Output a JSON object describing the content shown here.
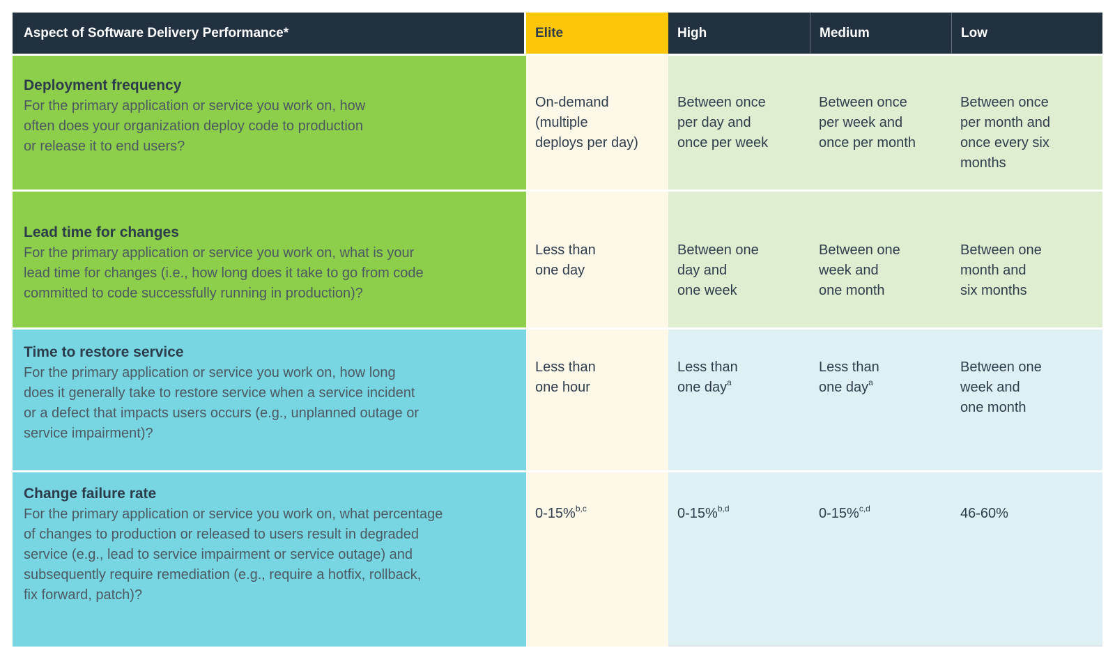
{
  "colors": {
    "header-bg": "#213140",
    "header-text": "#ffffff",
    "elite-bg": "#fdc608",
    "green": "#8dce4b",
    "green-tint": "#dfeed1",
    "cream": "#fdf8e7",
    "cyan": "#78d6e3",
    "cyan-tint": "#def0f4",
    "title-text": "#2d3c4b",
    "desc-text": "#4d5961",
    "cell-text": "#2e3d4c"
  },
  "header": {
    "aspect": "Aspect of Software Delivery Performance*",
    "levels": [
      "Elite",
      "High",
      "Medium",
      "Low"
    ]
  },
  "rows": [
    {
      "title": "Deployment frequency",
      "description": "For the primary application or service you work on, how\noften does your organization deploy code to production\nor release it to end users?",
      "cells": [
        {
          "text": "On-demand\n(multiple\ndeploys per day)",
          "sup": ""
        },
        {
          "text": "Between once\nper day and\nonce per week",
          "sup": ""
        },
        {
          "text": "Between once\nper week and\nonce per month",
          "sup": ""
        },
        {
          "text": "Between once\nper month and\nonce every six\nmonths",
          "sup": ""
        }
      ]
    },
    {
      "title": "Lead time for changes",
      "description": "For the primary application or service you work on, what is your\nlead time for changes (i.e., how long does it take to go from code\ncommitted to code successfully running in production)?",
      "cells": [
        {
          "text": "Less than\none day",
          "sup": ""
        },
        {
          "text": "Between one\nday and\none week",
          "sup": ""
        },
        {
          "text": "Between one\nweek and\none month",
          "sup": ""
        },
        {
          "text": "Between one\nmonth and\nsix months",
          "sup": ""
        }
      ]
    },
    {
      "title": "Time to restore service",
      "description": "For the primary application or service you work on, how long\ndoes it generally take to restore service when a service incident\nor a defect that impacts users occurs (e.g., unplanned outage or\nservice impairment)?",
      "cells": [
        {
          "text": "Less than\none hour",
          "sup": ""
        },
        {
          "text": "Less than\none day",
          "sup": "a"
        },
        {
          "text": "Less than\none day",
          "sup": "a"
        },
        {
          "text": "Between one\nweek and\none month",
          "sup": ""
        }
      ]
    },
    {
      "title": "Change failure rate",
      "description": "For the primary application or service you work on, what percentage\nof changes to production or released to users result in degraded\nservice (e.g., lead to service impairment or service outage) and\nsubsequently require remediation (e.g., require a hotfix, rollback,\nfix forward, patch)?",
      "cells": [
        {
          "text": "0-15%",
          "sup": "b,c"
        },
        {
          "text": "0-15%",
          "sup": "b,d"
        },
        {
          "text": "0-15%",
          "sup": "c,d"
        },
        {
          "text": "46-60%",
          "sup": ""
        }
      ]
    }
  ]
}
